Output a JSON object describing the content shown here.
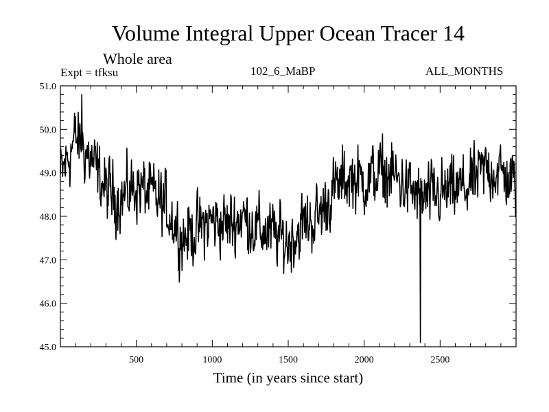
{
  "chart_data": {
    "type": "line",
    "title": "Volume Integral Upper Ocean Tracer 14",
    "subtitle": "Whole area",
    "experiment": "Expt = tfksu",
    "period": "102_6_MaBP",
    "months": "ALL_MONTHS",
    "xlabel": "Time (in years since start)",
    "ylabel": "",
    "xlim": [
      0,
      3000
    ],
    "ylim": [
      45.0,
      51.0
    ],
    "xticks": [
      500,
      1000,
      1500,
      2000,
      2500
    ],
    "yticks": [
      45.0,
      46.0,
      47.0,
      48.0,
      49.0,
      50.0,
      51.0
    ],
    "ytick_labels": [
      "45.0",
      "46.0",
      "47.0",
      "48.0",
      "49.0",
      "50.0",
      "51.0"
    ],
    "series": [
      {
        "name": "Tracer 14",
        "x": [
          0,
          100,
          200,
          300,
          400,
          500,
          600,
          700,
          800,
          900,
          1000,
          1100,
          1200,
          1300,
          1400,
          1500,
          1600,
          1700,
          1800,
          1900,
          2000,
          2100,
          2200,
          2300,
          2400,
          2500,
          2600,
          2700,
          2800,
          2900,
          3000
        ],
        "values": [
          48.9,
          49.8,
          49.3,
          48.6,
          48.4,
          48.7,
          48.5,
          48.2,
          47.5,
          47.7,
          47.9,
          47.8,
          48.0,
          47.7,
          47.6,
          47.4,
          47.8,
          48.0,
          48.6,
          48.9,
          48.8,
          49.0,
          48.9,
          48.6,
          48.4,
          48.5,
          48.6,
          48.7,
          49.1,
          49.0,
          48.7
        ],
        "noise_amplitude": 0.8,
        "min_point": {
          "x": 2370,
          "y": 45.1
        },
        "max_point": {
          "x": 140,
          "y": 50.8
        }
      }
    ]
  }
}
